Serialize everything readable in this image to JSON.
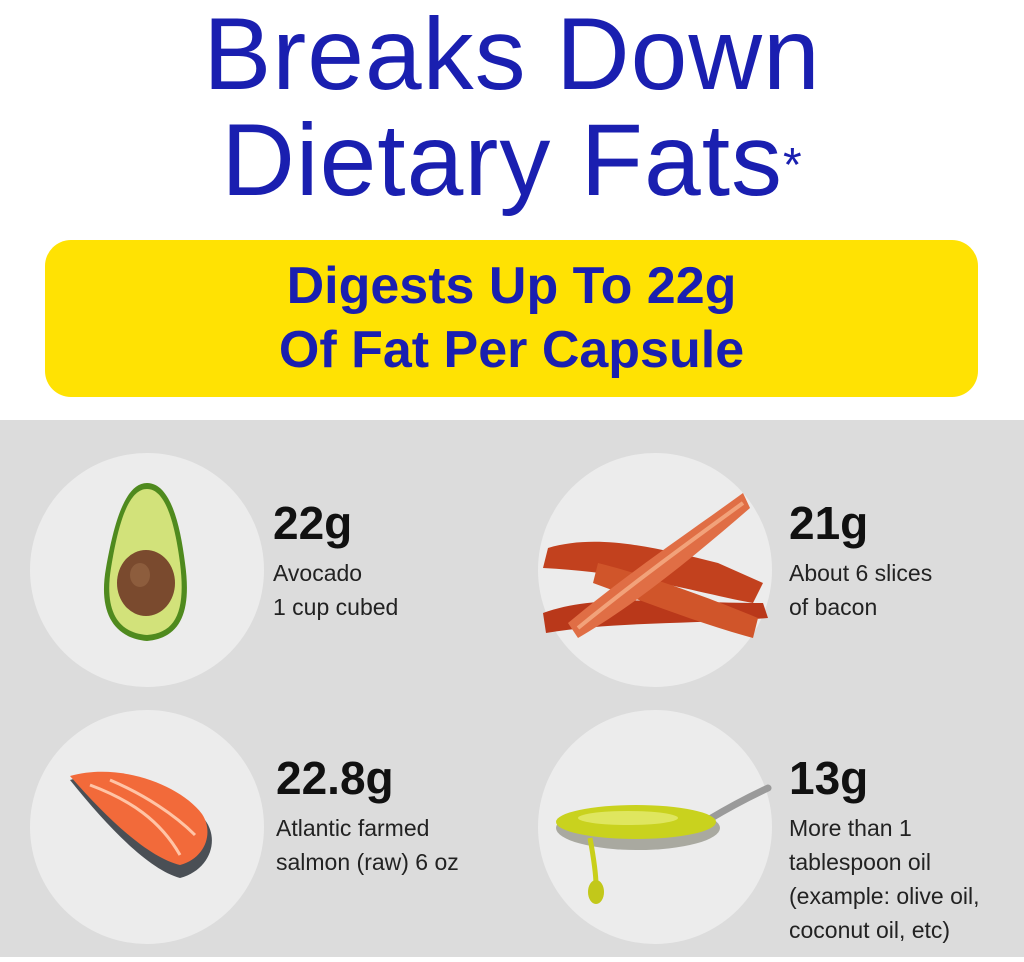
{
  "header": {
    "title_line1": "Breaks Down",
    "title_line2": "Dietary Fats",
    "asterisk": "*"
  },
  "banner": {
    "line1_prefix": "Digests Up To ",
    "line1_bold": "22g",
    "line2": "Of Fat Per Capsule",
    "color": "#ffe203"
  },
  "colors": {
    "title": "#1a1fb0",
    "panel": "#dcdcdc",
    "circle": "#ececec"
  },
  "items": [
    {
      "amount": "22g",
      "desc": [
        "Avocado",
        "1 cup cubed"
      ],
      "icon": "avocado-icon"
    },
    {
      "amount": "21g",
      "desc": [
        "About 6 slices",
        "of bacon"
      ],
      "icon": "bacon-icon"
    },
    {
      "amount": "22.8g",
      "desc": [
        "Atlantic farmed",
        "salmon (raw) 6 oz"
      ],
      "icon": "salmon-icon"
    },
    {
      "amount": "13g",
      "desc": [
        "More than 1",
        "tablespoon oil",
        "(example: olive oil,",
        "coconut oil, etc)"
      ],
      "icon": "olive-oil-spoon-icon"
    }
  ]
}
